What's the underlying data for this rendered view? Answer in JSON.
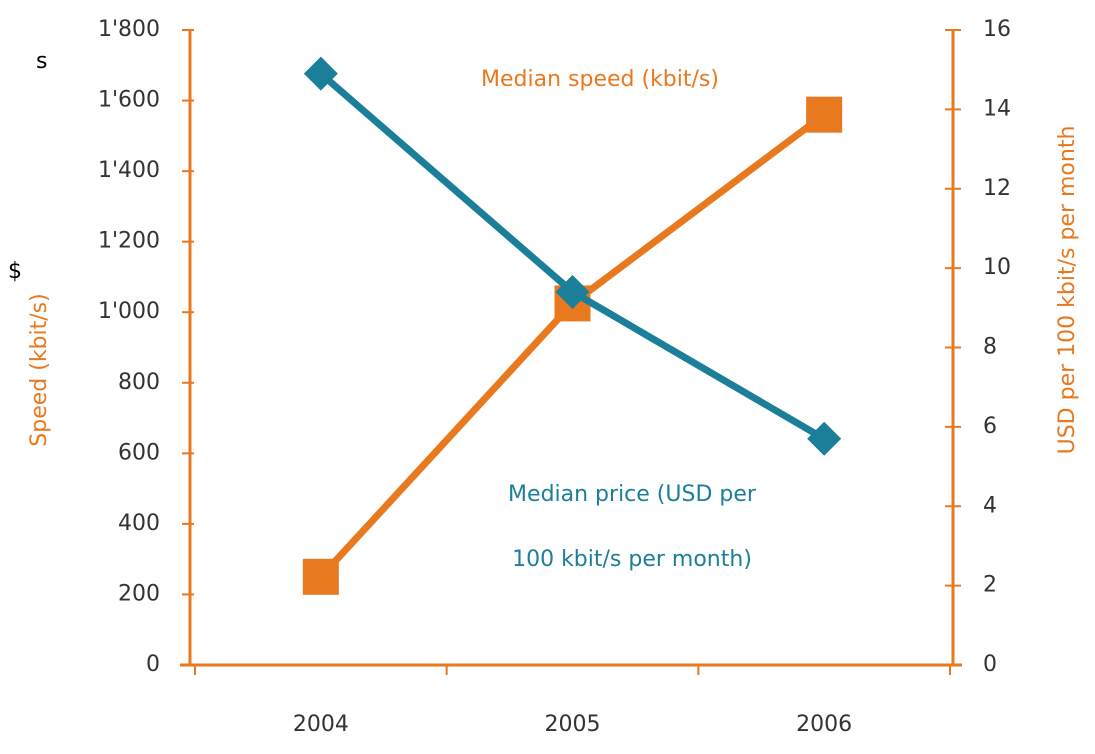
{
  "chart_data": {
    "type": "line",
    "categories": [
      "2004",
      "2005",
      "2006"
    ],
    "series": [
      {
        "name": "Median speed (kbit/s)",
        "color": "#e8791e",
        "marker": "square",
        "values": [
          250,
          1025,
          1560
        ]
      },
      {
        "name": "Median price (USD per 100 kbit/s per month)",
        "color": "#1b7f99",
        "marker": "diamond",
        "axis": "y2",
        "values": [
          14.9,
          9.4,
          5.7
        ]
      }
    ],
    "annotations": [
      "Median speed (kbit/s)",
      "Median price (USD per",
      "100 kbit/s per month)"
    ],
    "fragments": [
      "s",
      "$"
    ],
    "ylabel": "Speed (kbit/s)",
    "y2label": "USD per 100 kbit/s per month",
    "ylim": [
      0,
      1800
    ],
    "yticks": [
      0,
      200,
      400,
      600,
      800,
      {
        "value": 1000,
        "label": "1'000"
      },
      {
        "value": 1200,
        "label": "1'200"
      },
      {
        "value": 1400,
        "label": "1'400"
      },
      {
        "value": 1600,
        "label": "1'600"
      },
      {
        "value": 1800,
        "label": "1'800"
      }
    ],
    "y2lim": [
      0,
      16
    ],
    "y2ticks": [
      0,
      2,
      4,
      6,
      8,
      10,
      12,
      14,
      16
    ],
    "axis_color": "#e8791e",
    "grid": false
  }
}
